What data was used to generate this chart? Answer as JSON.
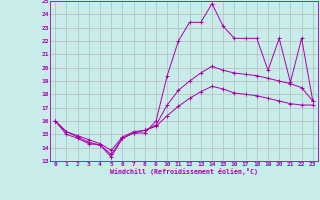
{
  "xlabel": "Windchill (Refroidissement éolien,°C)",
  "background_color": "#c8ecea",
  "grid_color": "#b0b0b0",
  "line_color": "#aa00aa",
  "xmin": 0,
  "xmax": 23,
  "ymin": 13,
  "ymax": 25,
  "yticks": [
    13,
    14,
    15,
    16,
    17,
    18,
    19,
    20,
    21,
    22,
    23,
    24,
    25
  ],
  "xticks": [
    0,
    1,
    2,
    3,
    4,
    5,
    6,
    7,
    8,
    9,
    10,
    11,
    12,
    13,
    14,
    15,
    16,
    17,
    18,
    19,
    20,
    21,
    22,
    23
  ],
  "series": [
    {
      "x": [
        0,
        1,
        2,
        3,
        4,
        5,
        6,
        7,
        8,
        9,
        10,
        11,
        12,
        13,
        14,
        15,
        16,
        17,
        18,
        19,
        20,
        21,
        22,
        23
      ],
      "y": [
        16.0,
        15.0,
        14.7,
        14.3,
        14.2,
        13.3,
        14.7,
        15.1,
        15.1,
        16.0,
        19.4,
        22.0,
        23.4,
        23.4,
        24.8,
        23.1,
        22.2,
        22.2,
        22.2,
        19.8,
        22.2,
        18.9,
        22.2,
        17.5
      ]
    },
    {
      "x": [
        0,
        1,
        2,
        3,
        4,
        5,
        6,
        7,
        8,
        9,
        10,
        11,
        12,
        13,
        14,
        15,
        16,
        17,
        18,
        19,
        20,
        21,
        22,
        23
      ],
      "y": [
        16.0,
        15.2,
        14.8,
        14.4,
        14.2,
        13.5,
        14.7,
        15.1,
        15.3,
        15.7,
        17.2,
        18.3,
        19.0,
        19.6,
        20.1,
        19.8,
        19.6,
        19.5,
        19.4,
        19.2,
        19.0,
        18.8,
        18.5,
        17.5
      ]
    },
    {
      "x": [
        0,
        1,
        2,
        3,
        4,
        5,
        6,
        7,
        8,
        9,
        10,
        11,
        12,
        13,
        14,
        15,
        16,
        17,
        18,
        19,
        20,
        21,
        22,
        23
      ],
      "y": [
        16.0,
        15.2,
        14.9,
        14.6,
        14.3,
        13.8,
        14.8,
        15.2,
        15.3,
        15.6,
        16.4,
        17.1,
        17.7,
        18.2,
        18.6,
        18.4,
        18.1,
        18.0,
        17.9,
        17.7,
        17.5,
        17.3,
        17.2,
        17.2
      ]
    }
  ]
}
